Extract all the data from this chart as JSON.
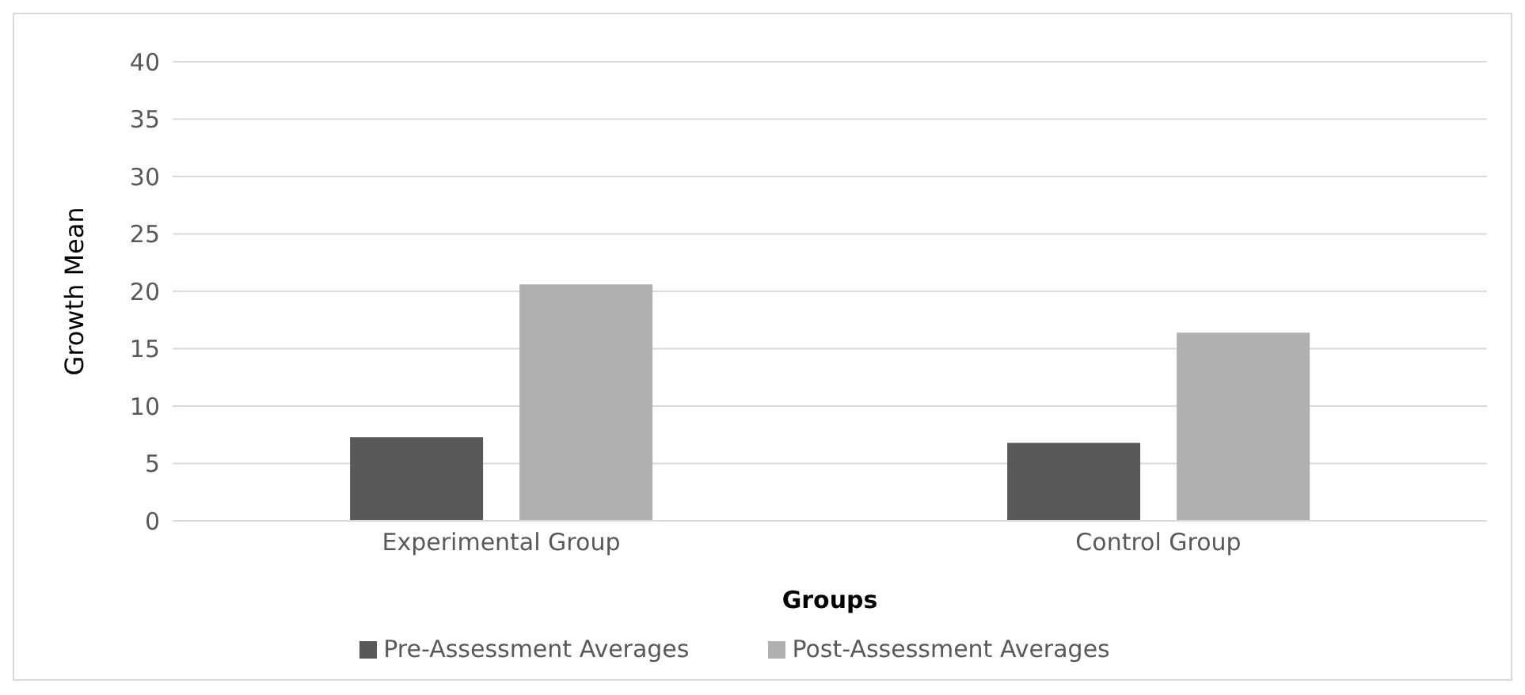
{
  "chart_data": {
    "type": "bar",
    "xlabel": "Groups",
    "ylabel": "Growth Mean",
    "categories": [
      "Experimental Group",
      "Control Group"
    ],
    "series": [
      {
        "name": "Pre-Assessment Averages",
        "color": "#595959",
        "values": [
          7.3,
          6.8
        ]
      },
      {
        "name": "Post-Assessment Averages",
        "color": "#b0b0b0",
        "values": [
          20.6,
          16.4
        ]
      }
    ],
    "ylim": [
      0,
      40
    ],
    "yticks": [
      0,
      5,
      10,
      15,
      20,
      25,
      30,
      35,
      40
    ],
    "grid": "y",
    "legend": "bottom"
  }
}
